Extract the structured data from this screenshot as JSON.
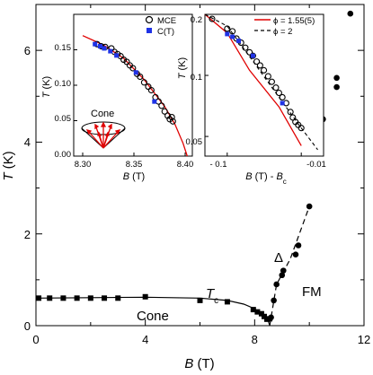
{
  "chart_data": [
    {
      "type": "scatter",
      "panel": "main",
      "xlabel": "B (T)",
      "ylabel": "T (K)",
      "xlim": [
        0,
        12
      ],
      "ylim": [
        0,
        7
      ],
      "xticks": [
        "0",
        "4",
        "8",
        "12"
      ],
      "yticks": [
        "0",
        "2",
        "4",
        "6"
      ],
      "annotations": {
        "tc": "T",
        "tc_sub": "c",
        "cone": "Cone",
        "fm": "FM",
        "delta": "Δ"
      },
      "series": [
        {
          "marker": "square",
          "points": [
            [
              0.1,
              0.6
            ],
            [
              0.5,
              0.6
            ],
            [
              1.0,
              0.6
            ],
            [
              1.5,
              0.6
            ],
            [
              2.0,
              0.6
            ],
            [
              2.5,
              0.6
            ],
            [
              3.0,
              0.6
            ],
            [
              4.0,
              0.63
            ],
            [
              6.0,
              0.55
            ],
            [
              7.0,
              0.52
            ],
            [
              7.95,
              0.35
            ],
            [
              8.1,
              0.3
            ],
            [
              8.25,
              0.26
            ],
            [
              8.35,
              0.2
            ],
            [
              8.45,
              0.14
            ],
            [
              8.55,
              0.15
            ]
          ]
        },
        {
          "marker": "circle",
          "points": [
            [
              8.6,
              0.18
            ],
            [
              8.7,
              0.55
            ],
            [
              8.8,
              0.9
            ],
            [
              9.0,
              1.1
            ],
            [
              9.05,
              1.2
            ],
            [
              9.5,
              1.55
            ],
            [
              9.6,
              1.75
            ],
            [
              10.0,
              2.6
            ],
            [
              10.5,
              4.5
            ],
            [
              11.0,
              5.2
            ],
            [
              11.0,
              5.4
            ],
            [
              11.5,
              6.8
            ]
          ]
        }
      ],
      "phase_line_cone": [
        [
          0,
          0.6
        ],
        [
          2,
          0.61
        ],
        [
          4,
          0.62
        ],
        [
          6,
          0.6
        ],
        [
          7,
          0.55
        ],
        [
          7.6,
          0.47
        ],
        [
          8.0,
          0.37
        ],
        [
          8.3,
          0.24
        ],
        [
          8.5,
          0.1
        ],
        [
          8.55,
          0
        ]
      ],
      "phase_line_fm_dashed": [
        [
          8.55,
          0
        ],
        [
          8.8,
          0.9
        ],
        [
          9.3,
          1.45
        ],
        [
          10.0,
          2.6
        ]
      ]
    },
    {
      "type": "scatter",
      "panel": "inset-left",
      "xlabel": "B (T)",
      "ylabel": "T (K)",
      "xlim": [
        8.3,
        8.4
      ],
      "ylim": [
        0,
        0.18
      ],
      "xticks": [
        "8.30",
        "8.35",
        "8.40"
      ],
      "yticks": [
        "0.00",
        "0.05",
        "0.10",
        "0.15"
      ],
      "legend": [
        "MCE",
        "C(T)"
      ],
      "annotations": {
        "cone": "Cone"
      },
      "series": [
        {
          "name": "MCE",
          "marker": "open-circle",
          "points": [
            [
              8.314,
              0.158
            ],
            [
              8.318,
              0.155
            ],
            [
              8.322,
              0.154
            ],
            [
              8.328,
              0.152
            ],
            [
              8.331,
              0.147
            ],
            [
              8.334,
              0.144
            ],
            [
              8.337,
              0.141
            ],
            [
              8.34,
              0.136
            ],
            [
              8.343,
              0.133
            ],
            [
              8.346,
              0.128
            ],
            [
              8.349,
              0.124
            ],
            [
              8.353,
              0.116
            ],
            [
              8.356,
              0.112
            ],
            [
              8.36,
              0.104
            ],
            [
              8.364,
              0.098
            ],
            [
              8.367,
              0.093
            ],
            [
              8.371,
              0.083
            ],
            [
              8.374,
              0.077
            ],
            [
              8.377,
              0.071
            ],
            [
              8.38,
              0.063
            ],
            [
              8.383,
              0.057
            ],
            [
              8.385,
              0.052
            ],
            [
              8.387,
              0.055
            ],
            [
              8.388,
              0.049
            ]
          ]
        },
        {
          "name": "C(T)",
          "marker": "square",
          "points": [
            [
              8.312,
              0.158
            ],
            [
              8.317,
              0.155
            ],
            [
              8.321,
              0.152
            ],
            [
              8.327,
              0.148
            ],
            [
              8.333,
              0.142
            ],
            [
              8.352,
              0.118
            ],
            [
              8.37,
              0.077
            ]
          ]
        }
      ],
      "fit_curve": [
        [
          8.3,
          0.17
        ],
        [
          8.32,
          0.157
        ],
        [
          8.34,
          0.138
        ],
        [
          8.36,
          0.108
        ],
        [
          8.38,
          0.07
        ],
        [
          8.39,
          0.045
        ],
        [
          8.398,
          0.018
        ],
        [
          8.402,
          0
        ]
      ]
    },
    {
      "type": "scatter",
      "panel": "inset-right",
      "xlabel": "B (T) - B",
      "xlabel_sub": "c",
      "ylabel": "T (K)",
      "xscale": "log-reversed",
      "yscale": "log",
      "xlim": [
        -0.2,
        -0.005
      ],
      "ylim": [
        0.04,
        0.2
      ],
      "xticks": [
        "- 0.1",
        "-0.01"
      ],
      "yticks": [
        "0.2",
        "0.1",
        "0.05"
      ],
      "legend": [
        "ϕ = 1.55(5)",
        "ϕ = 2"
      ],
      "series": [
        {
          "name": "MCE",
          "marker": "open-circle",
          "points": [
            [
              -0.16,
              0.19
            ],
            [
              -0.1,
              0.17
            ],
            [
              -0.085,
              0.165
            ],
            [
              -0.075,
              0.152
            ],
            [
              -0.065,
              0.145
            ],
            [
              -0.057,
              0.137
            ],
            [
              -0.05,
              0.13
            ],
            [
              -0.045,
              0.125
            ],
            [
              -0.04,
              0.117
            ],
            [
              -0.036,
              0.112
            ],
            [
              -0.032,
              0.106
            ],
            [
              -0.028,
              0.099
            ],
            [
              -0.025,
              0.093
            ],
            [
              -0.022,
              0.087
            ],
            [
              -0.02,
              0.082
            ],
            [
              -0.018,
              0.078
            ],
            [
              -0.016,
              0.073
            ],
            [
              -0.014,
              0.066
            ],
            [
              -0.013,
              0.062
            ],
            [
              -0.012,
              0.059
            ],
            [
              -0.011,
              0.057
            ],
            [
              -0.01,
              0.055
            ]
          ]
        },
        {
          "name": "C(T)",
          "marker": "square",
          "points": [
            [
              -0.1,
              0.16
            ],
            [
              -0.085,
              0.155
            ],
            [
              -0.07,
              0.148
            ],
            [
              -0.045,
              0.125
            ],
            [
              -0.018,
              0.073
            ]
          ]
        }
      ],
      "fit_phi_155": [
        [
          -0.2,
          0.22
        ],
        [
          -0.1,
          0.162
        ],
        [
          -0.05,
          0.106
        ],
        [
          -0.02,
          0.07
        ],
        [
          -0.01,
          0.045
        ]
      ],
      "fit_phi_2": [
        [
          -0.2,
          0.25
        ],
        [
          -0.1,
          0.175
        ],
        [
          -0.05,
          0.124
        ],
        [
          -0.02,
          0.078
        ],
        [
          -0.01,
          0.055
        ],
        [
          -0.006,
          0.043
        ]
      ]
    }
  ]
}
